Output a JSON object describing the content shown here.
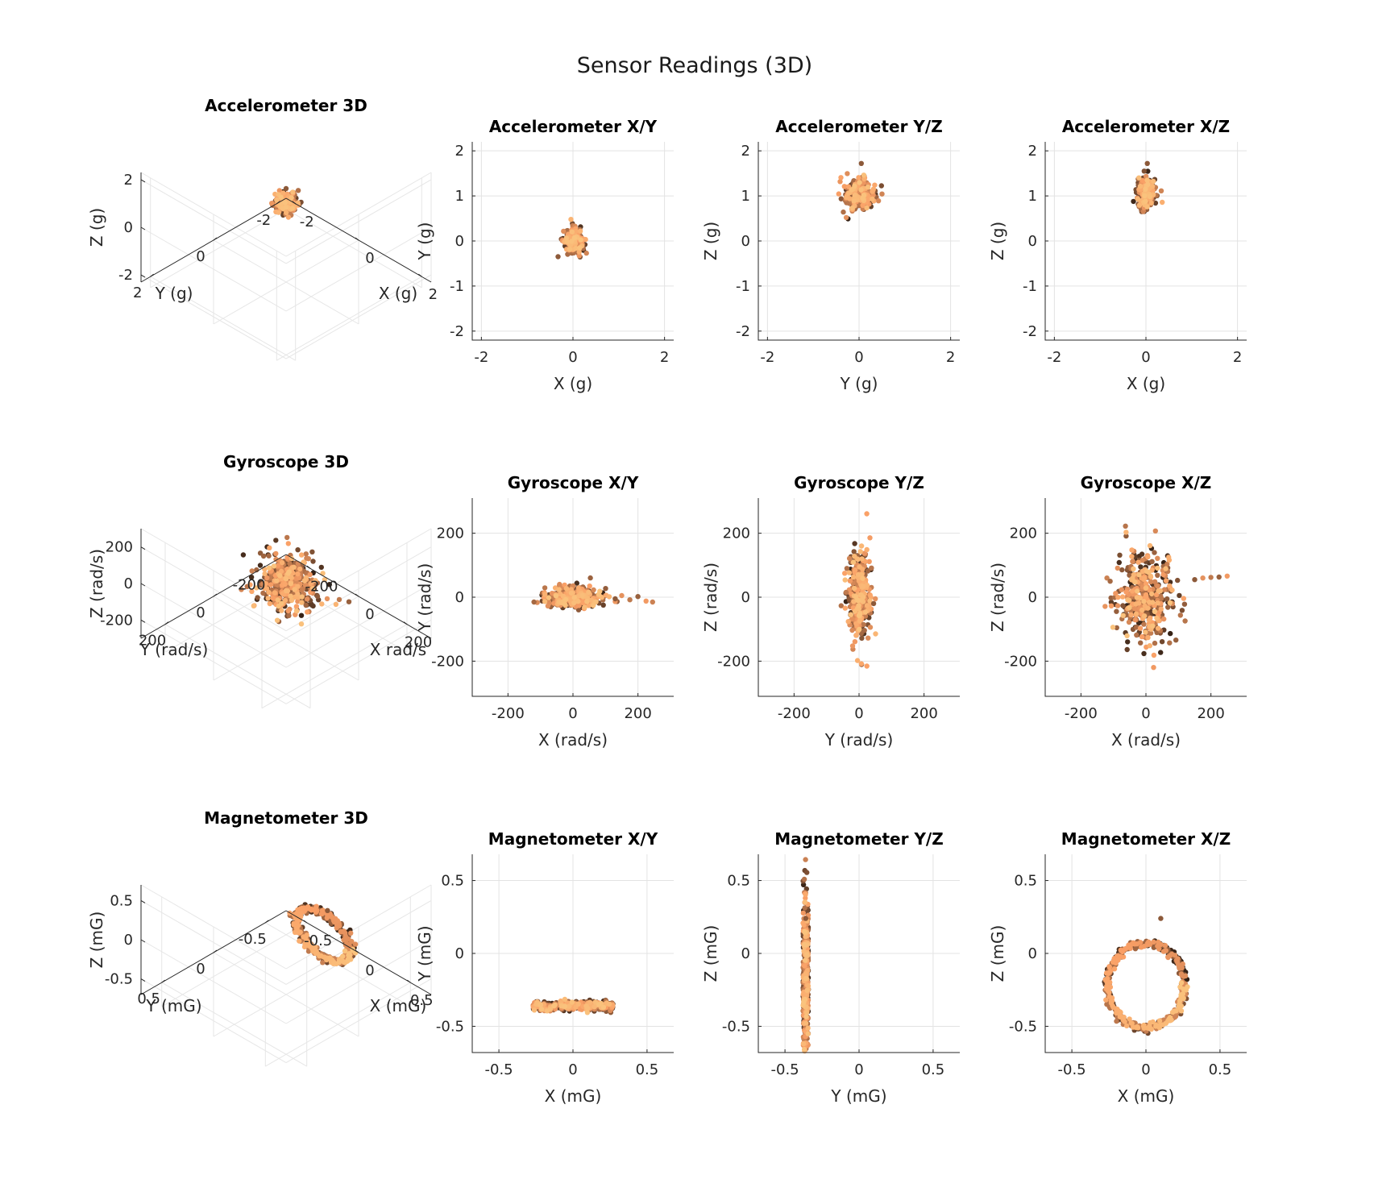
{
  "figure": {
    "title": "Sensor Readings (3D)"
  },
  "colors": {
    "colormap": "copper",
    "dark": "#1f130c",
    "light": "#fbc98a"
  },
  "chart_data": [
    {
      "type": "scatter",
      "projection": "3d",
      "title": "Accelerometer 3D",
      "xlabel": "X (g)",
      "ylabel": "Y (g)",
      "zlabel": "Z (g)",
      "xlim": [
        -2.3,
        2.3
      ],
      "ylim": [
        -2.3,
        2.3
      ],
      "zlim": [
        -2.3,
        2.3
      ],
      "xticks": [
        -2,
        0,
        2
      ],
      "yticks": [
        -2,
        0,
        2
      ],
      "zticks": [
        -2,
        0,
        2
      ],
      "xtick_labels": [
        "-2",
        "0",
        "2"
      ],
      "ytick_labels": [
        "-2",
        "0",
        "2"
      ],
      "ztick_labels": [
        "-2",
        "0",
        "2"
      ],
      "grid": true,
      "shape": "blob",
      "center": [
        0.0,
        0.0,
        1.05
      ],
      "spread": [
        0.12,
        0.12,
        0.18
      ],
      "n": 260,
      "outliers": [
        [
          0.05,
          0.05,
          1.7
        ]
      ]
    },
    {
      "type": "scatter",
      "title": "Accelerometer X/Y",
      "xlabel": "X (g)",
      "ylabel": "Y (g)",
      "xlim": [
        -2.2,
        2.2
      ],
      "ylim": [
        -2.2,
        2.2
      ],
      "xticks": [
        -2,
        0,
        2
      ],
      "yticks": [
        -2,
        -1,
        0,
        1,
        2
      ],
      "xtick_labels": [
        "-2",
        "0",
        "2"
      ],
      "ytick_labels": [
        "-2",
        "-1",
        "0",
        "1",
        "2"
      ],
      "grid": true,
      "shape": "blob",
      "center": [
        0.0,
        0.0
      ],
      "spread": [
        0.1,
        0.13
      ],
      "n": 260
    },
    {
      "type": "scatter",
      "title": "Accelerometer Y/Z",
      "xlabel": "Y (g)",
      "ylabel": "Z (g)",
      "xlim": [
        -2.2,
        2.2
      ],
      "ylim": [
        -2.2,
        2.2
      ],
      "xticks": [
        -2,
        0,
        2
      ],
      "yticks": [
        -2,
        -1,
        0,
        1,
        2
      ],
      "xtick_labels": [
        "-2",
        "0",
        "2"
      ],
      "ytick_labels": [
        "-2",
        "-1",
        "0",
        "1",
        "2"
      ],
      "grid": true,
      "shape": "blob",
      "center": [
        0.0,
        1.05
      ],
      "spread": [
        0.16,
        0.16
      ],
      "n": 260,
      "outliers": [
        [
          0.05,
          1.72
        ],
        [
          -0.28,
          0.52
        ]
      ]
    },
    {
      "type": "scatter",
      "title": "Accelerometer X/Z",
      "xlabel": "X (g)",
      "ylabel": "Z (g)",
      "xlim": [
        -2.2,
        2.2
      ],
      "ylim": [
        -2.2,
        2.2
      ],
      "xticks": [
        -2,
        0,
        2
      ],
      "yticks": [
        -2,
        -1,
        0,
        1,
        2
      ],
      "xtick_labels": [
        "-2",
        "0",
        "2"
      ],
      "ytick_labels": [
        "-2",
        "-1",
        "0",
        "1",
        "2"
      ],
      "grid": true,
      "shape": "blob",
      "center": [
        0.0,
        1.05
      ],
      "spread": [
        0.1,
        0.17
      ],
      "n": 260,
      "outliers": [
        [
          0.03,
          1.72
        ]
      ]
    },
    {
      "type": "scatter",
      "projection": "3d",
      "title": "Gyroscope 3D",
      "xlabel": "X rad/s",
      "ylabel": "Y (rad/s)",
      "zlabel": "Z (rad/s)",
      "xlim": [
        -300,
        300
      ],
      "ylim": [
        -300,
        300
      ],
      "zlim": [
        -300,
        300
      ],
      "xticks": [
        -200,
        0,
        200
      ],
      "yticks": [
        -200,
        0,
        200
      ],
      "zticks": [
        -200,
        0,
        200
      ],
      "xtick_labels": [
        "-200",
        "0",
        "200"
      ],
      "ytick_labels": [
        "-200",
        "0",
        "200"
      ],
      "ztick_labels": [
        "-200",
        "0",
        "200"
      ],
      "grid": true,
      "shape": "blob",
      "center": [
        0,
        0,
        0
      ],
      "spread": [
        45,
        40,
        70
      ],
      "n": 420,
      "outliers": [
        [
          150,
          20,
          60
        ],
        [
          180,
          10,
          62
        ],
        [
          210,
          -10,
          65
        ],
        [
          240,
          -20,
          68
        ]
      ]
    },
    {
      "type": "scatter",
      "title": "Gyroscope X/Y",
      "xlabel": "X (rad/s)",
      "ylabel": "Y (rad/s)",
      "xlim": [
        -310,
        310
      ],
      "ylim": [
        -310,
        310
      ],
      "xticks": [
        -200,
        0,
        200
      ],
      "yticks": [
        -200,
        0,
        200
      ],
      "xtick_labels": [
        "-200",
        "0",
        "200"
      ],
      "ytick_labels": [
        "-200",
        "0",
        "200"
      ],
      "grid": true,
      "shape": "blob",
      "center": [
        0,
        0
      ],
      "spread": [
        42,
        15
      ],
      "n": 420,
      "outliers": [
        [
          130,
          -5
        ],
        [
          150,
          5
        ],
        [
          175,
          -8
        ],
        [
          200,
          2
        ],
        [
          225,
          -12
        ],
        [
          245,
          -15
        ],
        [
          -120,
          -15
        ]
      ]
    },
    {
      "type": "scatter",
      "title": "Gyroscope Y/Z",
      "xlabel": "Y (rad/s)",
      "ylabel": "Z (rad/s)",
      "xlim": [
        -310,
        310
      ],
      "ylim": [
        -310,
        310
      ],
      "xticks": [
        -200,
        0,
        200
      ],
      "yticks": [
        -200,
        0,
        200
      ],
      "xtick_labels": [
        "-200",
        "0",
        "200"
      ],
      "ytick_labels": [
        "-200",
        "0",
        "200"
      ],
      "grid": true,
      "shape": "blob",
      "center": [
        0,
        0
      ],
      "spread": [
        16,
        70
      ],
      "n": 420,
      "outliers": [
        [
          45,
          -20
        ],
        [
          50,
          -5
        ],
        [
          -40,
          15
        ]
      ]
    },
    {
      "type": "scatter",
      "title": "Gyroscope X/Z",
      "xlabel": "X (rad/s)",
      "ylabel": "Z (rad/s)",
      "xlim": [
        -310,
        310
      ],
      "ylim": [
        -310,
        310
      ],
      "xticks": [
        -200,
        0,
        200
      ],
      "yticks": [
        -200,
        0,
        200
      ],
      "xtick_labels": [
        "-200",
        "0",
        "200"
      ],
      "ytick_labels": [
        "-200",
        "0",
        "200"
      ],
      "grid": true,
      "shape": "blob",
      "center": [
        0,
        0
      ],
      "spread": [
        40,
        70
      ],
      "n": 420,
      "outliers": [
        [
          150,
          55
        ],
        [
          175,
          60
        ],
        [
          200,
          62
        ],
        [
          225,
          63
        ],
        [
          250,
          66
        ],
        [
          -120,
          60
        ],
        [
          -110,
          50
        ]
      ]
    },
    {
      "type": "scatter",
      "projection": "3d",
      "title": "Magnetometer 3D",
      "xlabel": "X (mG)",
      "ylabel": "Y (mG)",
      "zlabel": "Z (mG)",
      "xlim": [
        -0.7,
        0.7
      ],
      "ylim": [
        -0.7,
        0.7
      ],
      "zlim": [
        -0.7,
        0.7
      ],
      "xticks": [
        -0.5,
        0,
        0.5
      ],
      "yticks": [
        -0.5,
        0,
        0.5
      ],
      "zticks": [
        -0.5,
        0,
        0.5
      ],
      "xtick_labels": [
        "-0.5",
        "0",
        "0.5"
      ],
      "ytick_labels": [
        "-0.5",
        "0",
        "0.5"
      ],
      "ztick_labels": [
        "-0.5",
        "0",
        "0.5"
      ],
      "grid": true,
      "shape": "ring",
      "center": [
        0.0,
        -0.36,
        -0.22
      ],
      "radius": [
        0.26,
        0.02,
        0.28
      ],
      "n": 420,
      "outliers": [
        [
          0.1,
          -0.3,
          0.22
        ]
      ]
    },
    {
      "type": "scatter",
      "title": "Magnetometer X/Y",
      "xlabel": "X (mG)",
      "ylabel": "Y (mG)",
      "xlim": [
        -0.68,
        0.68
      ],
      "ylim": [
        -0.68,
        0.68
      ],
      "xticks": [
        -0.5,
        0,
        0.5
      ],
      "yticks": [
        -0.5,
        0,
        0.5
      ],
      "xtick_labels": [
        "-0.5",
        "0",
        "0.5"
      ],
      "ytick_labels": [
        "-0.5",
        "0",
        "0.5"
      ],
      "grid": true,
      "shape": "band",
      "center": [
        0.0,
        -0.36
      ],
      "spread": [
        0.27,
        0.015
      ],
      "n": 420
    },
    {
      "type": "scatter",
      "title": "Magnetometer Y/Z",
      "xlabel": "Y (mG)",
      "ylabel": "Z (mG)",
      "xlim": [
        -0.68,
        0.68
      ],
      "ylim": [
        -0.68,
        0.68
      ],
      "xticks": [
        -0.5,
        0,
        0.5
      ],
      "yticks": [
        -0.5,
        0,
        0.5
      ],
      "xtick_labels": [
        "-0.5",
        "0",
        "0.5"
      ],
      "ytick_labels": [
        "-0.5",
        "0",
        "0.5"
      ],
      "grid": true,
      "shape": "band",
      "center": [
        -0.36,
        -0.22
      ],
      "spread": [
        0.018,
        0.3
      ],
      "n": 420,
      "outliers": [
        [
          -0.36,
          0.24
        ]
      ]
    },
    {
      "type": "scatter",
      "title": "Magnetometer X/Z",
      "xlabel": "X (mG)",
      "ylabel": "Z (mG)",
      "xlim": [
        -0.68,
        0.68
      ],
      "ylim": [
        -0.68,
        0.68
      ],
      "xticks": [
        -0.5,
        0,
        0.5
      ],
      "yticks": [
        -0.5,
        0,
        0.5
      ],
      "xtick_labels": [
        "-0.5",
        "0",
        "0.5"
      ],
      "ytick_labels": [
        "-0.5",
        "0",
        "0.5"
      ],
      "grid": true,
      "shape": "ring",
      "center": [
        0.0,
        -0.22
      ],
      "radius": [
        0.26,
        0.29
      ],
      "n": 420,
      "outliers": [
        [
          0.1,
          0.24
        ]
      ]
    }
  ]
}
